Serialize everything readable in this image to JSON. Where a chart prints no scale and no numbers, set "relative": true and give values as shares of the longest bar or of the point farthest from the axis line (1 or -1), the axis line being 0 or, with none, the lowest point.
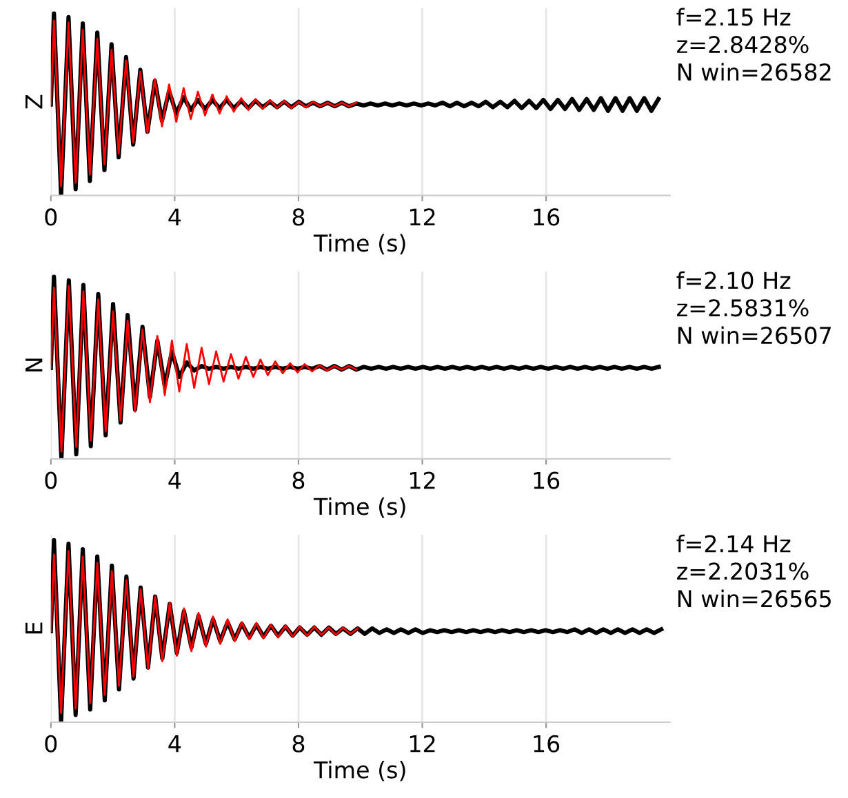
{
  "chart_data": [
    {
      "type": "line",
      "ylabel": "Z",
      "xlabel": "Time (s)",
      "relative": true,
      "grid": "x",
      "xlim": [
        0,
        20
      ],
      "xticks": [
        0,
        4,
        8,
        12,
        16
      ],
      "annotations": [
        "f=2.15 Hz\nz=2.8428%\nN win=26582"
      ],
      "x": [
        0,
        0.1,
        0.33,
        0.57,
        0.8,
        1.03,
        1.26,
        1.5,
        1.73,
        1.96,
        2.19,
        2.43,
        2.66,
        2.89,
        3.12,
        3.36,
        3.59,
        3.82,
        4.05,
        4.29,
        4.52,
        4.75,
        4.98,
        5.22,
        5.45,
        5.68,
        5.91,
        6.15,
        6.38,
        6.61,
        6.84,
        7.08,
        7.31,
        7.54,
        7.77,
        8.01,
        8.24,
        8.47,
        8.7,
        8.94,
        9.17,
        9.4,
        9.63,
        9.87,
        10.1,
        10.33,
        10.56,
        10.8,
        11.03,
        11.26,
        11.49,
        11.73,
        11.96,
        12.19,
        12.42,
        12.66,
        12.89,
        13.12,
        13.35,
        13.59,
        13.82,
        14.05,
        14.28,
        14.52,
        14.75,
        14.98,
        15.21,
        15.45,
        15.68,
        15.91,
        16.14,
        16.38,
        16.61,
        16.84,
        17.07,
        17.31,
        17.54,
        17.77,
        18.0,
        18.24,
        18.47,
        18.7,
        18.93,
        19.17,
        19.4,
        19.63
      ],
      "series": [
        {
          "color": "#000000",
          "values": [
            0.5,
            1.0,
            0.0,
            0.98,
            0.035,
            0.945,
            0.08,
            0.895,
            0.14,
            0.83,
            0.21,
            0.76,
            0.28,
            0.69,
            0.35,
            0.63,
            0.41,
            0.575,
            0.45,
            0.54,
            0.47,
            0.525,
            0.475,
            0.525,
            0.48,
            0.525,
            0.48,
            0.52,
            0.48,
            0.52,
            0.485,
            0.515,
            0.485,
            0.515,
            0.485,
            0.515,
            0.49,
            0.51,
            0.49,
            0.51,
            0.49,
            0.51,
            0.49,
            0.505,
            0.495,
            0.505,
            0.495,
            0.505,
            0.495,
            0.505,
            0.495,
            0.505,
            0.495,
            0.505,
            0.495,
            0.51,
            0.49,
            0.51,
            0.49,
            0.51,
            0.49,
            0.515,
            0.485,
            0.515,
            0.485,
            0.52,
            0.48,
            0.52,
            0.48,
            0.525,
            0.475,
            0.525,
            0.475,
            0.53,
            0.47,
            0.53,
            0.47,
            0.535,
            0.465,
            0.535,
            0.465,
            0.535,
            0.465,
            0.535,
            0.465,
            0.53
          ]
        },
        {
          "color": "#ff0000",
          "values": [
            0.5,
            0.96,
            0.05,
            0.95,
            0.07,
            0.91,
            0.115,
            0.86,
            0.17,
            0.8,
            0.23,
            0.74,
            0.29,
            0.68,
            0.345,
            0.64,
            0.38,
            0.61,
            0.405,
            0.59,
            0.42,
            0.57,
            0.44,
            0.555,
            0.45,
            0.545,
            0.46,
            0.535,
            0.47,
            0.53,
            0.475,
            0.525,
            0.48,
            0.52,
            0.48,
            0.515,
            0.485,
            0.515,
            0.49,
            0.51,
            0.49,
            0.51,
            0.49,
            0.51,
            null,
            null,
            null,
            null,
            null,
            null,
            null,
            null,
            null,
            null,
            null,
            null,
            null,
            null,
            null,
            null,
            null,
            null,
            null,
            null,
            null,
            null,
            null,
            null,
            null,
            null,
            null,
            null,
            null,
            null,
            null,
            null,
            null,
            null,
            null,
            null,
            null,
            null,
            null,
            null,
            null,
            null
          ]
        }
      ]
    },
    {
      "type": "line",
      "ylabel": "N",
      "xlabel": "Time (s)",
      "relative": true,
      "grid": "x",
      "xlim": [
        0,
        20
      ],
      "xticks": [
        0,
        4,
        8,
        12,
        16
      ],
      "annotations": [
        "f=2.10 Hz\nz=2.5831%\nN win=26507"
      ],
      "x": [
        0,
        0.1,
        0.34,
        0.58,
        0.82,
        1.05,
        1.29,
        1.53,
        1.77,
        2.01,
        2.25,
        2.48,
        2.72,
        2.96,
        3.2,
        3.44,
        3.68,
        3.91,
        4.15,
        4.39,
        4.63,
        4.87,
        5.11,
        5.34,
        5.58,
        5.82,
        6.06,
        6.3,
        6.54,
        6.77,
        7.01,
        7.25,
        7.49,
        7.73,
        7.97,
        8.2,
        8.44,
        8.68,
        8.92,
        9.16,
        9.4,
        9.63,
        9.87,
        10.11,
        10.35,
        10.59,
        10.83,
        11.06,
        11.3,
        11.54,
        11.78,
        12.02,
        12.26,
        12.49,
        12.73,
        12.97,
        13.21,
        13.45,
        13.69,
        13.92,
        14.16,
        14.4,
        14.64,
        14.88,
        15.12,
        15.35,
        15.59,
        15.83,
        16.07,
        16.31,
        16.55,
        16.78,
        17.02,
        17.26,
        17.5,
        17.74,
        17.98,
        18.21,
        18.45,
        18.69,
        18.93,
        19.17,
        19.41,
        19.64
      ],
      "series": [
        {
          "color": "#000000",
          "values": [
            0.5,
            1.0,
            0.0,
            0.98,
            0.025,
            0.955,
            0.07,
            0.905,
            0.13,
            0.85,
            0.2,
            0.79,
            0.27,
            0.725,
            0.34,
            0.65,
            0.4,
            0.59,
            0.45,
            0.53,
            0.485,
            0.51,
            0.495,
            0.505,
            0.495,
            0.505,
            0.495,
            0.505,
            0.495,
            0.505,
            0.495,
            0.505,
            0.495,
            0.505,
            0.495,
            0.505,
            0.495,
            0.51,
            0.49,
            0.51,
            0.49,
            0.51,
            0.49,
            0.505,
            0.495,
            0.505,
            0.495,
            0.505,
            0.495,
            0.505,
            0.495,
            0.505,
            0.495,
            0.505,
            0.495,
            0.505,
            0.495,
            0.505,
            0.495,
            0.505,
            0.495,
            0.505,
            0.495,
            0.505,
            0.495,
            0.505,
            0.495,
            0.505,
            0.495,
            0.505,
            0.495,
            0.505,
            0.495,
            0.505,
            0.495,
            0.505,
            0.495,
            0.505,
            0.495,
            0.505,
            0.495,
            0.505,
            0.495,
            0.505
          ]
        },
        {
          "color": "#ff0000",
          "values": [
            0.5,
            0.94,
            0.04,
            0.95,
            0.065,
            0.92,
            0.1,
            0.875,
            0.15,
            0.81,
            0.21,
            0.76,
            0.26,
            0.71,
            0.31,
            0.675,
            0.35,
            0.65,
            0.37,
            0.63,
            0.39,
            0.61,
            0.41,
            0.59,
            0.425,
            0.575,
            0.44,
            0.56,
            0.45,
            0.545,
            0.46,
            0.535,
            0.47,
            0.525,
            0.475,
            0.52,
            0.48,
            0.515,
            0.485,
            0.51,
            0.49,
            0.51,
            0.49,
            null,
            null,
            null,
            null,
            null,
            null,
            null,
            null,
            null,
            null,
            null,
            null,
            null,
            null,
            null,
            null,
            null,
            null,
            null,
            null,
            null,
            null,
            null,
            null,
            null,
            null,
            null,
            null,
            null,
            null,
            null,
            null,
            null,
            null,
            null,
            null,
            null,
            null,
            null,
            null,
            null
          ]
        }
      ]
    },
    {
      "type": "line",
      "ylabel": "E",
      "xlabel": "Time (s)",
      "relative": true,
      "grid": "x",
      "xlim": [
        0,
        20
      ],
      "xticks": [
        0,
        4,
        8,
        12,
        16
      ],
      "annotations": [
        "f=2.14 Hz\nz=2.2031%\nN win=26565"
      ],
      "x": [
        0,
        0.1,
        0.33,
        0.57,
        0.8,
        1.03,
        1.27,
        1.5,
        1.74,
        1.97,
        2.2,
        2.44,
        2.67,
        2.9,
        3.14,
        3.37,
        3.6,
        3.84,
        4.07,
        4.3,
        4.54,
        4.77,
        5.01,
        5.24,
        5.47,
        5.71,
        5.94,
        6.17,
        6.41,
        6.64,
        6.87,
        7.11,
        7.34,
        7.58,
        7.81,
        8.04,
        8.28,
        8.51,
        8.74,
        8.98,
        9.21,
        9.44,
        9.68,
        9.91,
        10.14,
        10.38,
        10.61,
        10.85,
        11.08,
        11.31,
        11.55,
        11.78,
        12.01,
        12.25,
        12.48,
        12.71,
        12.95,
        13.18,
        13.42,
        13.65,
        13.88,
        14.12,
        14.35,
        14.58,
        14.82,
        15.05,
        15.28,
        15.52,
        15.75,
        15.98,
        16.22,
        16.45,
        16.69,
        16.92,
        17.15,
        17.39,
        17.62,
        17.85,
        18.09,
        18.32,
        18.55,
        18.79,
        19.02,
        19.25,
        19.49,
        19.72
      ],
      "series": [
        {
          "color": "#000000",
          "values": [
            0.5,
            1.0,
            0.0,
            0.98,
            0.04,
            0.95,
            0.07,
            0.91,
            0.12,
            0.86,
            0.18,
            0.8,
            0.24,
            0.74,
            0.3,
            0.69,
            0.35,
            0.65,
            0.38,
            0.61,
            0.41,
            0.585,
            0.43,
            0.565,
            0.445,
            0.55,
            0.455,
            0.54,
            0.465,
            0.535,
            0.47,
            0.53,
            0.475,
            0.525,
            0.475,
            0.52,
            0.48,
            0.52,
            0.48,
            0.52,
            0.485,
            0.515,
            0.485,
            0.515,
            0.485,
            0.515,
            0.49,
            0.51,
            0.49,
            0.51,
            0.49,
            0.51,
            0.49,
            0.505,
            0.495,
            0.505,
            0.495,
            0.505,
            0.495,
            0.505,
            0.495,
            0.505,
            0.495,
            0.505,
            0.495,
            0.505,
            0.495,
            0.505,
            0.495,
            0.505,
            0.495,
            0.505,
            0.495,
            0.51,
            0.49,
            0.51,
            0.49,
            0.51,
            0.49,
            0.51,
            0.49,
            0.51,
            0.49,
            0.51,
            0.49,
            0.51
          ]
        },
        {
          "color": "#ff0000",
          "values": [
            0.5,
            0.92,
            0.05,
            0.94,
            0.075,
            0.91,
            0.105,
            0.875,
            0.15,
            0.83,
            0.2,
            0.78,
            0.25,
            0.73,
            0.295,
            0.69,
            0.335,
            0.655,
            0.365,
            0.625,
            0.39,
            0.6,
            0.415,
            0.58,
            0.43,
            0.565,
            0.445,
            0.55,
            0.455,
            0.545,
            0.46,
            0.535,
            0.465,
            0.53,
            0.47,
            0.525,
            0.475,
            0.525,
            0.48,
            0.52,
            0.48,
            0.52,
            0.485,
            0.515,
            null,
            null,
            null,
            null,
            null,
            null,
            null,
            null,
            null,
            null,
            null,
            null,
            null,
            null,
            null,
            null,
            null,
            null,
            null,
            null,
            null,
            null,
            null,
            null,
            null,
            null,
            null,
            null,
            null,
            null,
            null,
            null,
            null,
            null,
            null,
            null,
            null,
            null,
            null,
            null,
            null,
            null
          ]
        }
      ]
    }
  ]
}
